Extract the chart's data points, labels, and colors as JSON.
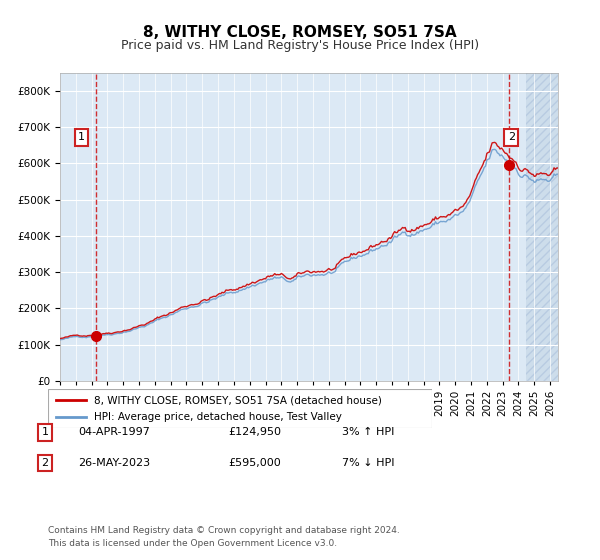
{
  "title": "8, WITHY CLOSE, ROMSEY, SO51 7SA",
  "subtitle": "Price paid vs. HM Land Registry's House Price Index (HPI)",
  "legend_line1": "8, WITHY CLOSE, ROMSEY, SO51 7SA (detached house)",
  "legend_line2": "HPI: Average price, detached house, Test Valley",
  "annotation1_label": "1",
  "annotation1_date": "04-APR-1997",
  "annotation1_price": "£124,950",
  "annotation1_hpi": "3% ↑ HPI",
  "annotation2_label": "2",
  "annotation2_date": "26-MAY-2023",
  "annotation2_price": "£595,000",
  "annotation2_hpi": "7% ↓ HPI",
  "footnote": "Contains HM Land Registry data © Crown copyright and database right 2024.\nThis data is licensed under the Open Government Licence v3.0.",
  "point1_x": 1997.25,
  "point1_y": 124950,
  "point2_x": 2023.4,
  "point2_y": 595000,
  "ylim": [
    0,
    850000
  ],
  "xlim_start": 1995.0,
  "xlim_end": 2026.5,
  "bg_color": "#dce9f5",
  "plot_bg_color": "#dce9f5",
  "hatch_color": "#b0c4de",
  "grid_color": "#ffffff",
  "red_line_color": "#cc0000",
  "blue_line_color": "#6699cc",
  "dashed_line_color": "#cc0000",
  "marker_color": "#cc0000",
  "title_fontsize": 11,
  "subtitle_fontsize": 9,
  "tick_fontsize": 7.5
}
